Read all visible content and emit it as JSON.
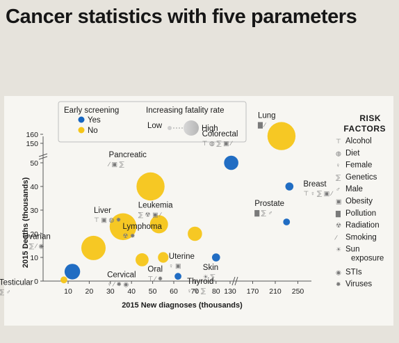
{
  "title": "Cancer statistics with five parameters",
  "legend": {
    "screening_title": "Early screening",
    "screening_yes": "Yes",
    "screening_no": "No",
    "fatality_title": "Increasing fatality rate",
    "fatality_low": "Low",
    "fatality_high": "High"
  },
  "risk_factors": {
    "title_line1": "RISK",
    "title_line2": "FACTORS",
    "items": [
      {
        "label": "Alcohol",
        "icon": "bottle-icon"
      },
      {
        "label": "Diet",
        "icon": "diet-icon"
      },
      {
        "label": "Female",
        "icon": "female-icon"
      },
      {
        "label": "Genetics",
        "icon": "dna-icon"
      },
      {
        "label": "Male",
        "icon": "male-icon"
      },
      {
        "label": "Obesity",
        "icon": "obesity-icon"
      },
      {
        "label": "Pollution",
        "icon": "factory-icon"
      },
      {
        "label": "Radiation",
        "icon": "radiation-icon"
      },
      {
        "label": "Smoking",
        "icon": "cigarette-icon"
      },
      {
        "label": "Sun\nexposure",
        "icon": "sun-icon"
      },
      {
        "label": "STIs",
        "icon": "sti-icon"
      },
      {
        "label": "Viruses",
        "icon": "virus-icon"
      }
    ]
  },
  "chart_data": {
    "type": "scatter",
    "title": "Cancer statistics with five parameters",
    "xlabel": "2015 New diagnoses (thousands)",
    "ylabel": "2015 Deaths (thousands)",
    "x_ticks": [
      "10",
      "20",
      "30",
      "40",
      "50",
      "60",
      "70",
      "80",
      "130",
      "170",
      "210",
      "250"
    ],
    "y_ticks": [
      "0",
      "10",
      "20",
      "30",
      "40",
      "50",
      "150",
      "160"
    ],
    "x_axis_break": "between 80 and 130",
    "y_axis_break": "between 50 and 150",
    "colors": {
      "screening_yes": "#1565c0",
      "screening_no": "#f5c518"
    },
    "points": [
      {
        "name": "Lung",
        "x": 221,
        "y": 158,
        "screening": "No",
        "fatality": 0.9,
        "risk_factors": [
          "Pollution",
          "Smoking"
        ]
      },
      {
        "name": "Pancreatic",
        "x": 49,
        "y": 40,
        "screening": "No",
        "fatality": 0.9,
        "risk_factors": [
          "Smoking",
          "Obesity",
          "Genetics"
        ]
      },
      {
        "name": "Colorectal",
        "x": 132,
        "y": 50,
        "screening": "Yes",
        "fatality": 0.35,
        "risk_factors": [
          "Alcohol",
          "Diet",
          "Genetics",
          "Obesity",
          "Smoking"
        ]
      },
      {
        "name": "Breast",
        "x": 235,
        "y": 40,
        "screening": "Yes",
        "fatality": 0.1,
        "risk_factors": [
          "Alcohol",
          "Female",
          "Genetics",
          "Obesity",
          "Smoking"
        ]
      },
      {
        "name": "Liver",
        "x": 36,
        "y": 23,
        "screening": "No",
        "fatality": 0.85,
        "risk_factors": [
          "Alcohol",
          "Obesity",
          "Diet",
          "Viruses"
        ]
      },
      {
        "name": "Leukemia",
        "x": 53,
        "y": 24,
        "screening": "No",
        "fatality": 0.5,
        "risk_factors": [
          "Genetics",
          "Radiation",
          "Obesity",
          "Smoking"
        ]
      },
      {
        "name": "Prostate",
        "x": 230,
        "y": 25,
        "screening": "Yes",
        "fatality": 0.05,
        "risk_factors": [
          "Pollution",
          "Genetics",
          "Male"
        ]
      },
      {
        "name": "Lymphoma",
        "x": 70,
        "y": 20,
        "screening": "No",
        "fatality": 0.35,
        "risk_factors": [
          "Radiation",
          "Viruses"
        ]
      },
      {
        "name": "Ovarian",
        "x": 22,
        "y": 14,
        "screening": "No",
        "fatality": 0.75,
        "risk_factors": [
          "Female",
          "Genetics",
          "Smoking",
          "STIs"
        ]
      },
      {
        "name": "Oral",
        "x": 45,
        "y": 9,
        "screening": "No",
        "fatality": 0.3,
        "risk_factors": [
          "Alcohol",
          "Smoking",
          "Viruses"
        ]
      },
      {
        "name": "Uterine",
        "x": 55,
        "y": 10,
        "screening": "No",
        "fatality": 0.2,
        "risk_factors": [
          "Female",
          "Obesity"
        ]
      },
      {
        "name": "Skin",
        "x": 80,
        "y": 10,
        "screening": "Yes",
        "fatality": 0.1,
        "risk_factors": [
          "Sun\nexposure",
          "Genetics"
        ]
      },
      {
        "name": "Testicular",
        "x": 8,
        "y": 0.5,
        "screening": "No",
        "fatality": 0.05,
        "risk_factors": [
          "Genetics",
          "Male"
        ]
      },
      {
        "name": "Thyroid",
        "x": 62,
        "y": 2,
        "screening": "Yes",
        "fatality": 0.05,
        "risk_factors": [
          "Female",
          "Radiation",
          "Genetics"
        ]
      },
      {
        "name": "Cervical",
        "x": 12,
        "y": 4,
        "screening": "Yes",
        "fatality": 0.4,
        "risk_factors": [
          "Female",
          "Smoking",
          "Viruses",
          "STIs"
        ]
      }
    ]
  }
}
